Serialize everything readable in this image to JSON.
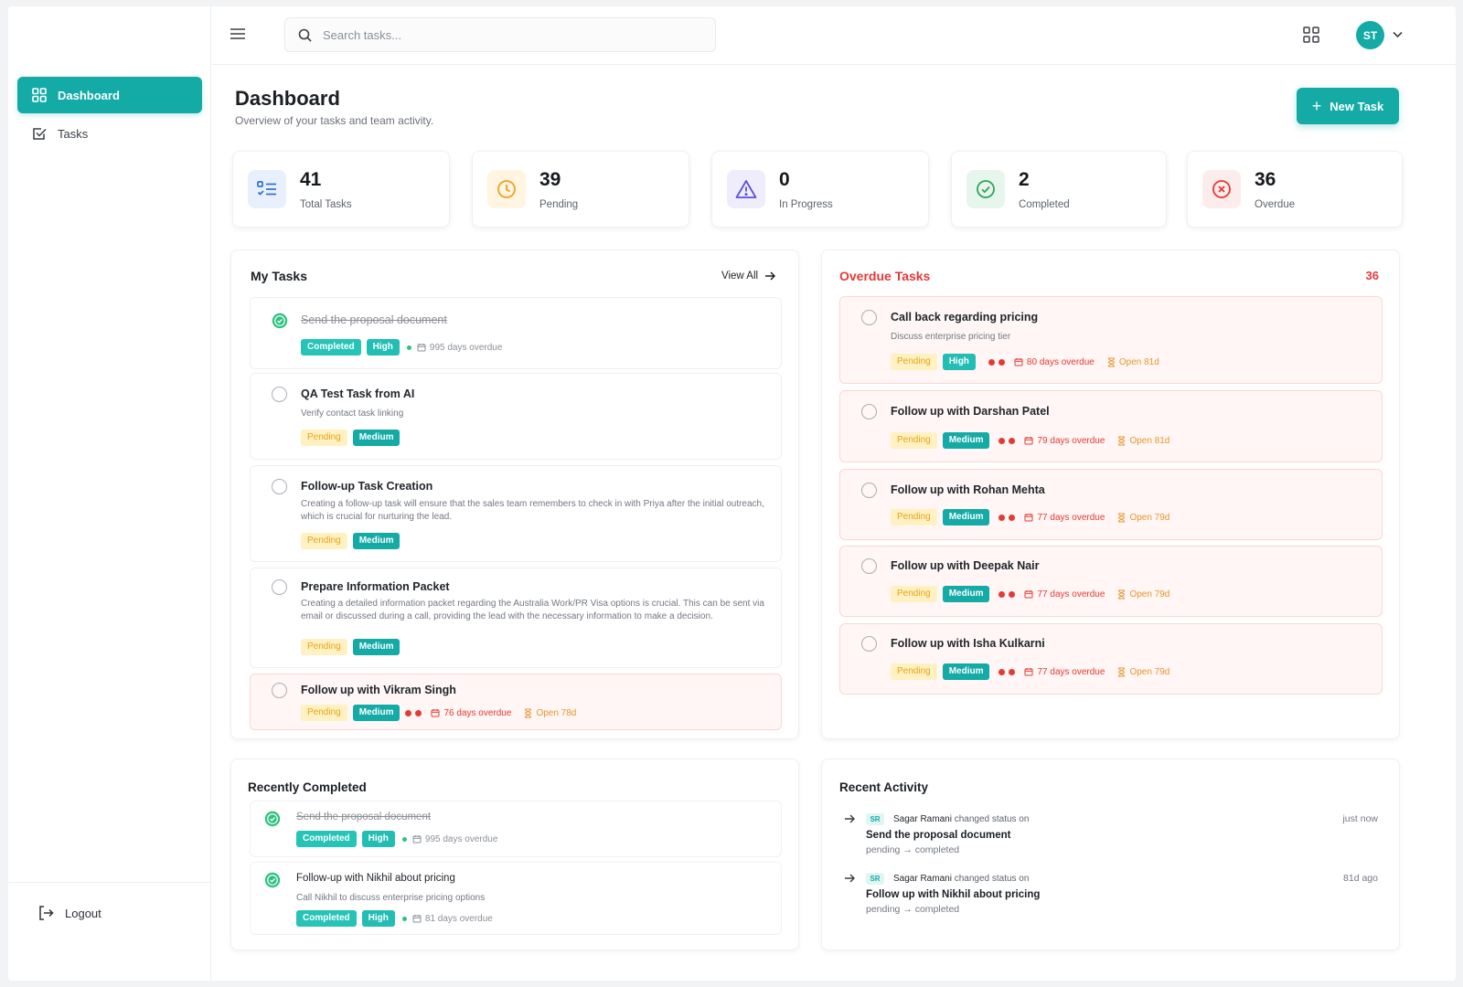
{
  "header": {
    "search_placeholder": "Search tasks...",
    "avatar_initials": "ST"
  },
  "sidebar": {
    "items": [
      {
        "label": "Dashboard",
        "active": true
      },
      {
        "label": "Tasks",
        "active": false
      }
    ],
    "logout_label": "Logout"
  },
  "page": {
    "title": "Dashboard",
    "subtitle": "Overview of your tasks and team activity.",
    "new_task_label": "New Task"
  },
  "stats": [
    {
      "value": "41",
      "label": "Total Tasks",
      "icon": "list-icon",
      "color": "#2b6fd6"
    },
    {
      "value": "39",
      "label": "Pending",
      "icon": "clock-icon",
      "color": "#f0a020"
    },
    {
      "value": "0",
      "label": "In Progress",
      "icon": "warning-icon",
      "color": "#5b4fd6"
    },
    {
      "value": "2",
      "label": "Completed",
      "icon": "check-circle-icon",
      "color": "#2ea35a"
    },
    {
      "value": "36",
      "label": "Overdue",
      "icon": "x-circle-icon",
      "color": "#e53935"
    }
  ],
  "my_tasks": {
    "title": "My Tasks",
    "view_all": "View All",
    "items": [
      {
        "title": "Send the proposal document",
        "description": "",
        "status": "Completed",
        "priority": "High",
        "overdue": "995 days overdue",
        "open": ""
      },
      {
        "title": "QA Test Task from AI",
        "description": "Verify contact task linking",
        "status": "Pending",
        "priority": "Medium",
        "overdue": "",
        "open": ""
      },
      {
        "title": "Follow-up Task Creation",
        "description": "Creating a follow-up task will ensure that the sales team remembers to check in with Priya after the initial outreach, which is crucial for nurturing the lead.",
        "status": "Pending",
        "priority": "Medium",
        "overdue": "",
        "open": ""
      },
      {
        "title": "Prepare Information Packet",
        "description": "Creating a detailed information packet regarding the Australia Work/PR Visa options is crucial. This can be sent via email or discussed during a call, providing the lead with the necessary information to make a decision.",
        "status": "Pending",
        "priority": "Medium",
        "overdue": "",
        "open": ""
      },
      {
        "title": "Follow up with Vikram Singh",
        "description": "",
        "status": "Pending",
        "priority": "Medium",
        "overdue": "76 days overdue",
        "open": "Open 78d"
      }
    ]
  },
  "overdue_tasks": {
    "title": "Overdue Tasks",
    "count": "36",
    "items": [
      {
        "title": "Call back regarding pricing",
        "description": "Discuss enterprise pricing tier",
        "status": "Pending",
        "priority": "High",
        "overdue": "80 days overdue",
        "open": "Open 81d"
      },
      {
        "title": "Follow up with Darshan Patel",
        "description": "",
        "status": "Pending",
        "priority": "Medium",
        "overdue": "79 days overdue",
        "open": "Open 81d"
      },
      {
        "title": "Follow up with Rohan Mehta",
        "description": "",
        "status": "Pending",
        "priority": "Medium",
        "overdue": "77 days overdue",
        "open": "Open 79d"
      },
      {
        "title": "Follow up with Deepak Nair",
        "description": "",
        "status": "Pending",
        "priority": "Medium",
        "overdue": "77 days overdue",
        "open": "Open 79d"
      },
      {
        "title": "Follow up with Isha Kulkarni",
        "description": "",
        "status": "Pending",
        "priority": "Medium",
        "overdue": "77 days overdue",
        "open": "Open 79d"
      }
    ]
  },
  "recently_completed": {
    "title": "Recently Completed",
    "items": [
      {
        "title": "Send the proposal document",
        "description": "",
        "status": "Completed",
        "priority": "High",
        "overdue": "995 days overdue"
      },
      {
        "title": "Follow-up with Nikhil about pricing",
        "description": "Call Nikhil to discuss enterprise pricing options",
        "status": "Completed",
        "priority": "High",
        "overdue": "81 days overdue"
      }
    ]
  },
  "recent_activity": {
    "title": "Recent Activity",
    "items": [
      {
        "initials": "SR",
        "user": "Sagar Ramani",
        "action": "changed status on",
        "task": "Send the proposal document",
        "change": "pending → completed",
        "time": "just now"
      },
      {
        "initials": "SR",
        "user": "Sagar Ramani",
        "action": "changed status on",
        "task": "Follow up with Nikhil about pricing",
        "change": "pending → completed",
        "time": "81d ago"
      }
    ]
  }
}
